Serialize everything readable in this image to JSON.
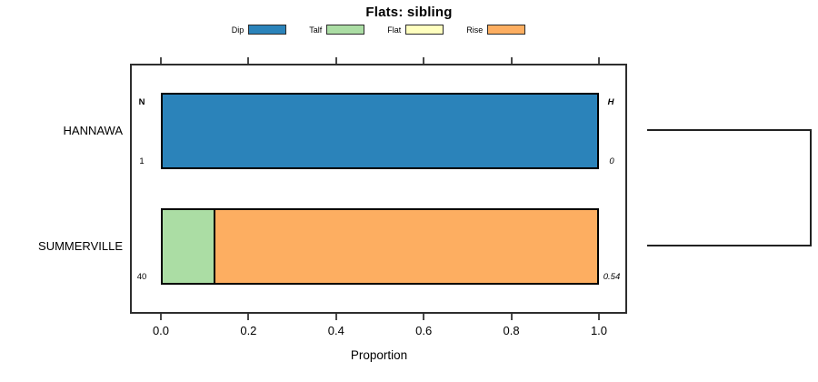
{
  "title": "Flats: sibling",
  "legend": {
    "items": [
      {
        "label": "Dip",
        "color": "#2B83BA"
      },
      {
        "label": "Talf",
        "color": "#ABDDA4"
      },
      {
        "label": "Flat",
        "color": "#FFFFBF"
      },
      {
        "label": "Rise",
        "color": "#FDAE61"
      }
    ]
  },
  "columns": {
    "left_header": "N",
    "right_header": "H"
  },
  "axis": {
    "label": "Proportion",
    "ticks": [
      "0.0",
      "0.2",
      "0.4",
      "0.6",
      "0.8",
      "1.0"
    ]
  },
  "chart_data": {
    "type": "bar",
    "orientation": "horizontal",
    "stacked": true,
    "title": "Flats: sibling",
    "xlabel": "Proportion",
    "xlim": [
      0,
      1
    ],
    "grid": false,
    "legend_position": "top",
    "categories": [
      "HANNAWA",
      "SUMMERVILLE"
    ],
    "n_values": [
      "1",
      "40"
    ],
    "h_values": [
      "0",
      "0.54"
    ],
    "series": [
      {
        "name": "Dip",
        "color": "#2B83BA",
        "values": [
          1.0,
          0
        ]
      },
      {
        "name": "Talf",
        "color": "#ABDDA4",
        "values": [
          0,
          0.125
        ]
      },
      {
        "name": "Flat",
        "color": "#FFFFBF",
        "values": [
          0,
          0
        ]
      },
      {
        "name": "Rise",
        "color": "#FDAE61",
        "values": [
          0,
          0.875
        ]
      }
    ],
    "dendrogram": "two-cluster bracket joining HANNAWA and SUMMERVILLE at right side"
  }
}
